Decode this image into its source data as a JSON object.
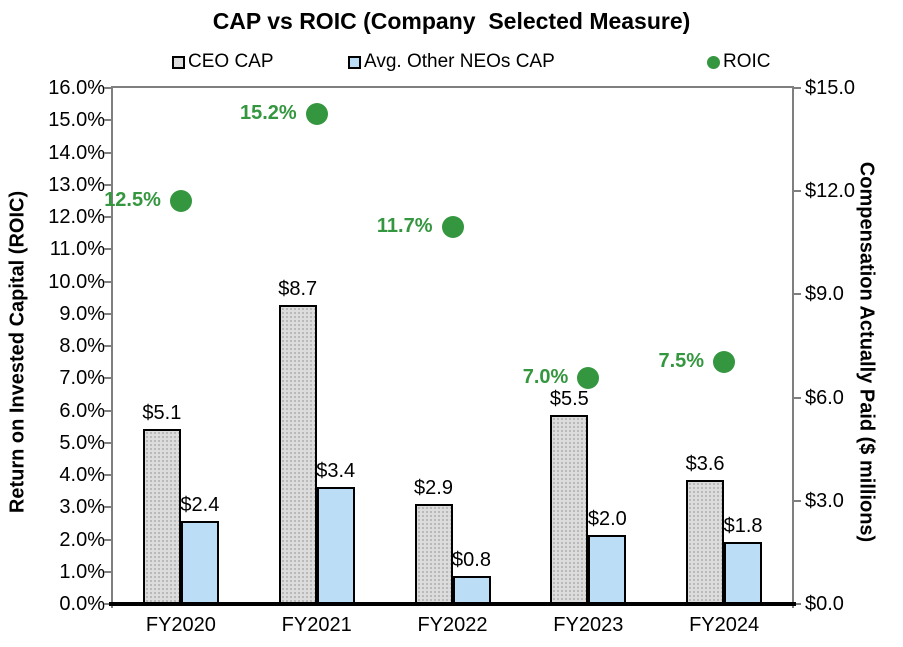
{
  "chart_data": {
    "type": "combo",
    "title": "CAP vs ROIC (Company  Selected Measure)",
    "categories": [
      "FY2020",
      "FY2021",
      "FY2022",
      "FY2023",
      "FY2024"
    ],
    "series": [
      {
        "name": "CEO CAP",
        "kind": "bar",
        "axis": "right",
        "color": "#DCDCDC",
        "border_color": "#000000",
        "values": [
          5.1,
          8.7,
          2.9,
          5.5,
          3.6
        ],
        "labels": [
          "$5.1",
          "$8.7",
          "$2.9",
          "$5.5",
          "$3.6"
        ]
      },
      {
        "name": "Avg. Other NEOs CAP",
        "kind": "bar",
        "axis": "right",
        "color": "#BCDDF6",
        "border_color": "#000000",
        "values": [
          2.4,
          3.4,
          0.8,
          2.0,
          1.8
        ],
        "labels": [
          "$2.4",
          "$3.4",
          "$0.8",
          "$2.0",
          "$1.8"
        ]
      },
      {
        "name": "ROIC",
        "kind": "scatter",
        "axis": "left",
        "color": "#34973F",
        "values": [
          12.5,
          15.2,
          11.7,
          7.0,
          7.5
        ],
        "labels": [
          "12.5%",
          "15.2%",
          "11.7%",
          "7.0%",
          "7.5%"
        ]
      }
    ],
    "left_axis": {
      "title": "Return on Invested Capital (ROIC)",
      "min": 0,
      "max": 16,
      "step": 1,
      "tick_labels": [
        "0.0%",
        "1.0%",
        "2.0%",
        "3.0%",
        "4.0%",
        "5.0%",
        "6.0%",
        "7.0%",
        "8.0%",
        "9.0%",
        "10.0%",
        "11.0%",
        "12.0%",
        "13.0%",
        "14.0%",
        "15.0%",
        "16.0%"
      ]
    },
    "right_axis": {
      "title": "Compensation Actually Paid ($ millions)",
      "min": 0,
      "max": 15,
      "step": 3,
      "tick_labels": [
        "$0.0",
        "$3.0",
        "$6.0",
        "$9.0",
        "$12.0",
        "$15.0"
      ]
    },
    "legend": {
      "position": "top",
      "items": [
        "CEO CAP",
        "Avg. Other NEOs CAP",
        "ROIC"
      ]
    },
    "grid": false,
    "axis_line_color": "#7F7F7F",
    "x_axis_line_color": "#000000",
    "label_color": "#000000"
  }
}
